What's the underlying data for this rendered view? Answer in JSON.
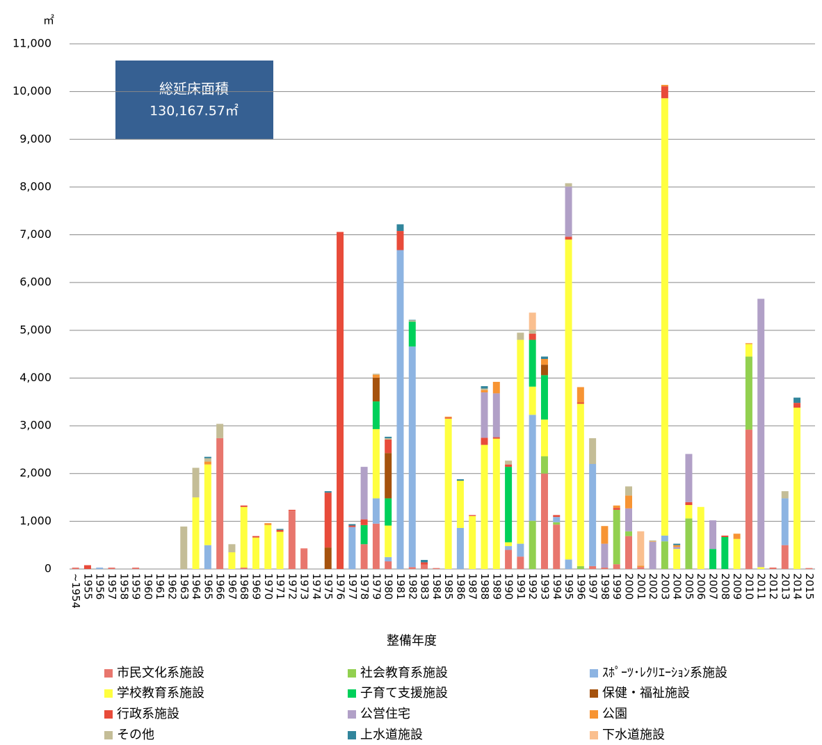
{
  "chart_data": {
    "type": "stacked_bar",
    "unit_label": "㎡",
    "annotation": {
      "title": "総延床面積",
      "total": "130,167.57㎡"
    },
    "x_label": "整備年度",
    "categories": [
      "~1954",
      "1955",
      "1956",
      "1957",
      "1958",
      "1959",
      "1960",
      "1961",
      "1962",
      "1963",
      "1964",
      "1965",
      "1966",
      "1967",
      "1968",
      "1969",
      "1970",
      "1971",
      "1972",
      "1973",
      "1974",
      "1975",
      "1976",
      "1977",
      "1978",
      "1979",
      "1980",
      "1981",
      "1982",
      "1983",
      "1984",
      "1985",
      "1986",
      "1987",
      "1988",
      "1989",
      "1990",
      "1991",
      "1992",
      "1993",
      "1994",
      "1995",
      "1996",
      "1997",
      "1998",
      "1999",
      "2000",
      "2001",
      "2002",
      "2003",
      "2004",
      "2005",
      "2006",
      "2007",
      "2008",
      "2009",
      "2010",
      "2011",
      "2012",
      "2013",
      "2014",
      "2015"
    ],
    "ylim": [
      0,
      11000
    ],
    "yticks": [
      0,
      {
        "value": 1000,
        "label": "1,000"
      },
      {
        "value": 2000,
        "label": "2,000"
      },
      {
        "value": 3000,
        "label": "3,000"
      },
      {
        "value": 4000,
        "label": "4,000"
      },
      {
        "value": 5000,
        "label": "5,000"
      },
      {
        "value": 6000,
        "label": "6,000"
      },
      {
        "value": 7000,
        "label": "7,000"
      },
      {
        "value": 8000,
        "label": "8,000"
      },
      {
        "value": 9000,
        "label": "9,000"
      },
      {
        "value": 10000,
        "label": "10,000"
      },
      {
        "value": 11000,
        "label": "11,000"
      }
    ],
    "grid": true,
    "series": [
      {
        "name": "市民文化系施設",
        "color": "#E8766D",
        "values": [
          30,
          0,
          0,
          30,
          0,
          30,
          0,
          0,
          0,
          0,
          0,
          0,
          2740,
          0,
          30,
          0,
          0,
          0,
          1220,
          420,
          0,
          0,
          0,
          0,
          520,
          950,
          160,
          0,
          40,
          90,
          20,
          0,
          0,
          0,
          0,
          0,
          400,
          260,
          0,
          2000,
          930,
          0,
          0,
          60,
          30,
          100,
          690,
          40,
          0,
          0,
          0,
          0,
          0,
          0,
          0,
          0,
          2920,
          0,
          20,
          500,
          0,
          20
        ]
      },
      {
        "name": "社会教育系施設",
        "color": "#92D050",
        "values": [
          0,
          0,
          0,
          0,
          0,
          0,
          0,
          0,
          0,
          0,
          0,
          0,
          0,
          0,
          0,
          0,
          0,
          0,
          0,
          0,
          0,
          0,
          0,
          0,
          0,
          0,
          0,
          0,
          0,
          0,
          0,
          0,
          0,
          0,
          0,
          0,
          0,
          0,
          1010,
          360,
          50,
          0,
          60,
          0,
          0,
          1140,
          100,
          0,
          0,
          580,
          0,
          1060,
          0,
          0,
          0,
          0,
          1530,
          0,
          0,
          0,
          0,
          0
        ]
      },
      {
        "name": "ｽﾎﾟｰﾂ･ﾚｸﾘｴｰｼｮﾝ系施設",
        "color": "#8DB4E2",
        "values": [
          0,
          0,
          30,
          0,
          0,
          0,
          0,
          0,
          0,
          0,
          0,
          500,
          0,
          0,
          0,
          0,
          0,
          0,
          0,
          0,
          0,
          0,
          0,
          880,
          0,
          530,
          90,
          6680,
          4620,
          0,
          0,
          0,
          860,
          0,
          0,
          0,
          80,
          270,
          2220,
          0,
          110,
          200,
          0,
          2140,
          0,
          0,
          0,
          0,
          0,
          120,
          0,
          0,
          0,
          0,
          0,
          0,
          0,
          0,
          0,
          980,
          0,
          0
        ]
      },
      {
        "name": "学校教育系施設",
        "color": "#FFFF3F",
        "values": [
          0,
          0,
          0,
          0,
          0,
          0,
          0,
          0,
          0,
          0,
          1500,
          1690,
          0,
          350,
          1270,
          660,
          920,
          780,
          0,
          0,
          0,
          0,
          0,
          0,
          0,
          1450,
          660,
          0,
          0,
          0,
          0,
          3150,
          990,
          1110,
          2600,
          2730,
          80,
          4270,
          590,
          770,
          0,
          6700,
          3400,
          0,
          0,
          0,
          0,
          0,
          0,
          9160,
          420,
          280,
          1300,
          0,
          0,
          630,
          260,
          40,
          0,
          0,
          3380,
          0
        ]
      },
      {
        "name": "子育て支援施設",
        "color": "#00D05A",
        "values": [
          0,
          0,
          0,
          0,
          0,
          0,
          0,
          0,
          0,
          0,
          0,
          0,
          0,
          0,
          0,
          0,
          0,
          0,
          0,
          0,
          0,
          0,
          0,
          0,
          400,
          580,
          570,
          0,
          520,
          0,
          0,
          0,
          0,
          0,
          0,
          0,
          1580,
          0,
          980,
          930,
          0,
          0,
          0,
          0,
          0,
          0,
          0,
          0,
          0,
          0,
          0,
          0,
          0,
          420,
          670,
          0,
          0,
          0,
          0,
          0,
          0,
          0
        ]
      },
      {
        "name": "保健・福祉施設",
        "color": "#A5520D",
        "values": [
          0,
          0,
          0,
          0,
          0,
          0,
          0,
          0,
          0,
          0,
          0,
          0,
          0,
          0,
          0,
          0,
          0,
          0,
          0,
          0,
          0,
          450,
          0,
          0,
          0,
          500,
          950,
          0,
          0,
          0,
          0,
          0,
          0,
          0,
          0,
          0,
          0,
          0,
          0,
          220,
          0,
          0,
          0,
          0,
          0,
          0,
          0,
          0,
          0,
          0,
          0,
          0,
          0,
          0,
          0,
          0,
          0,
          0,
          0,
          0,
          0,
          0
        ]
      },
      {
        "name": "行政系施設",
        "color": "#E84B3A",
        "values": [
          0,
          80,
          0,
          0,
          0,
          0,
          0,
          0,
          0,
          0,
          0,
          0,
          0,
          0,
          30,
          30,
          0,
          40,
          20,
          10,
          0,
          1150,
          7060,
          30,
          120,
          0,
          280,
          400,
          0,
          50,
          0,
          20,
          0,
          20,
          150,
          30,
          50,
          0,
          130,
          0,
          40,
          60,
          30,
          0,
          0,
          40,
          0,
          0,
          0,
          250,
          0,
          60,
          0,
          0,
          30,
          0,
          0,
          0,
          10,
          0,
          100,
          0
        ]
      },
      {
        "name": "公営住宅",
        "color": "#B1A0C7",
        "values": [
          0,
          0,
          0,
          0,
          0,
          0,
          0,
          0,
          0,
          0,
          0,
          0,
          0,
          0,
          0,
          0,
          0,
          0,
          0,
          0,
          0,
          0,
          0,
          0,
          1100,
          0,
          0,
          0,
          0,
          0,
          0,
          0,
          0,
          0,
          950,
          920,
          0,
          0,
          0,
          0,
          0,
          1050,
          0,
          0,
          500,
          0,
          480,
          0,
          570,
          0,
          40,
          1010,
          0,
          600,
          0,
          0,
          0,
          5620,
          0,
          0,
          0,
          0
        ]
      },
      {
        "name": "公園",
        "color": "#F79433",
        "values": [
          0,
          0,
          0,
          0,
          0,
          0,
          0,
          0,
          0,
          0,
          0,
          60,
          0,
          0,
          0,
          0,
          40,
          0,
          0,
          0,
          0,
          0,
          0,
          0,
          0,
          60,
          0,
          0,
          0,
          0,
          0,
          20,
          0,
          0,
          50,
          240,
          0,
          0,
          0,
          120,
          0,
          0,
          320,
          0,
          370,
          50,
          270,
          30,
          10,
          30,
          40,
          0,
          0,
          0,
          0,
          110,
          20,
          0,
          0,
          0,
          0,
          0
        ]
      },
      {
        "name": "その他",
        "color": "#C4BD97",
        "values": [
          0,
          0,
          0,
          0,
          0,
          0,
          0,
          0,
          0,
          890,
          620,
          70,
          300,
          170,
          0,
          0,
          0,
          0,
          0,
          0,
          0,
          0,
          0,
          0,
          0,
          20,
          30,
          0,
          30,
          0,
          0,
          0,
          0,
          0,
          30,
          0,
          80,
          150,
          80,
          0,
          0,
          70,
          0,
          540,
          0,
          0,
          190,
          0,
          20,
          0,
          0,
          0,
          0,
          0,
          0,
          0,
          0,
          0,
          0,
          150,
          0,
          0
        ]
      },
      {
        "name": "上水道施設",
        "color": "#31859C",
        "values": [
          0,
          0,
          0,
          0,
          0,
          0,
          0,
          0,
          0,
          0,
          0,
          30,
          0,
          0,
          0,
          0,
          0,
          20,
          0,
          0,
          0,
          30,
          0,
          30,
          0,
          0,
          30,
          140,
          10,
          50,
          0,
          0,
          30,
          0,
          50,
          0,
          0,
          0,
          0,
          50,
          0,
          0,
          0,
          0,
          0,
          0,
          0,
          0,
          0,
          0,
          30,
          0,
          0,
          0,
          0,
          0,
          0,
          0,
          0,
          0,
          110,
          0
        ]
      },
      {
        "name": "下水道施設",
        "color": "#FABF8F",
        "values": [
          0,
          0,
          0,
          0,
          0,
          0,
          0,
          0,
          0,
          0,
          0,
          0,
          0,
          0,
          0,
          0,
          0,
          0,
          0,
          0,
          0,
          0,
          0,
          0,
          0,
          0,
          0,
          0,
          0,
          0,
          0,
          0,
          0,
          0,
          0,
          0,
          0,
          0,
          360,
          0,
          0,
          0,
          0,
          0,
          0,
          0,
          0,
          720,
          0,
          0,
          0,
          0,
          0,
          0,
          0,
          0,
          0,
          0,
          0,
          0,
          0,
          0
        ]
      }
    ]
  }
}
